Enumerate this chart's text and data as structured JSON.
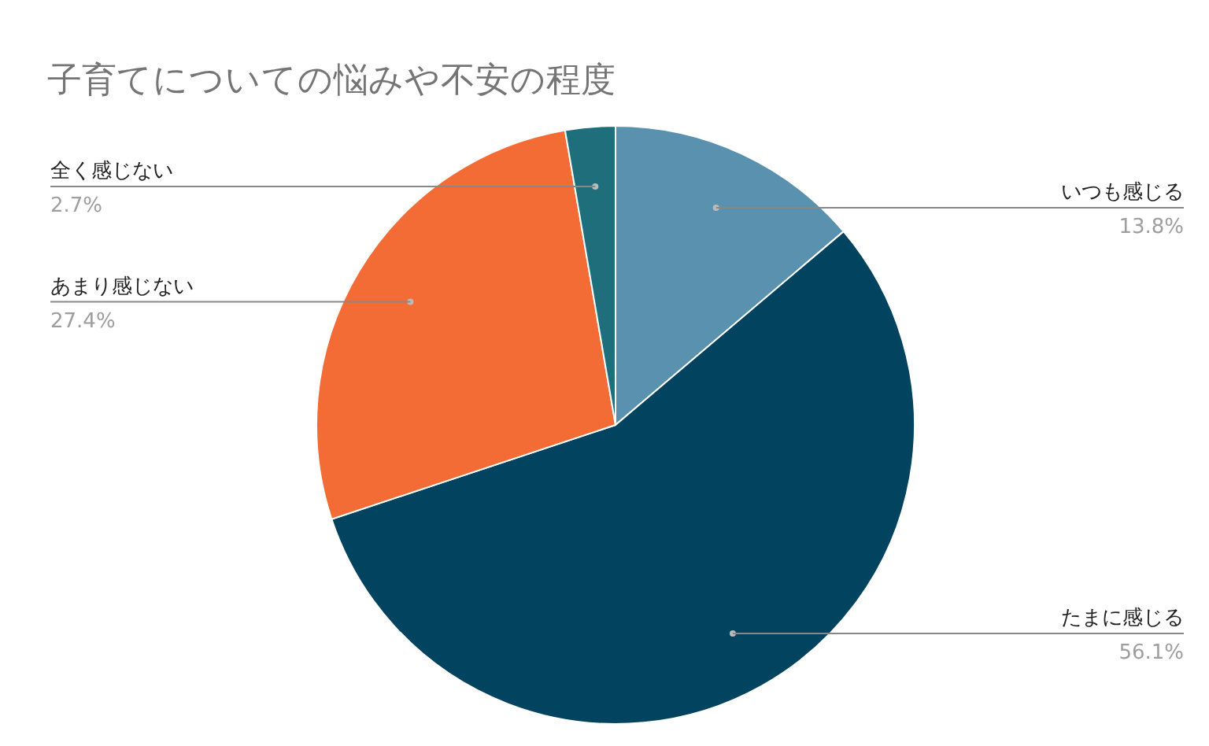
{
  "chart_data": {
    "type": "pie",
    "title": "子育てについての悩みや不安の程度",
    "categories": [
      "いつも感じる",
      "たまに感じる",
      "あまり感じない",
      "全く感じない"
    ],
    "values": [
      13.8,
      56.1,
      27.4,
      2.7
    ],
    "value_labels": [
      "13.8%",
      "56.1%",
      "27.4%",
      "2.7%"
    ],
    "colors": [
      "#5a91ae",
      "#02435f",
      "#f46c35",
      "#1e6e7c"
    ],
    "legend": false
  }
}
